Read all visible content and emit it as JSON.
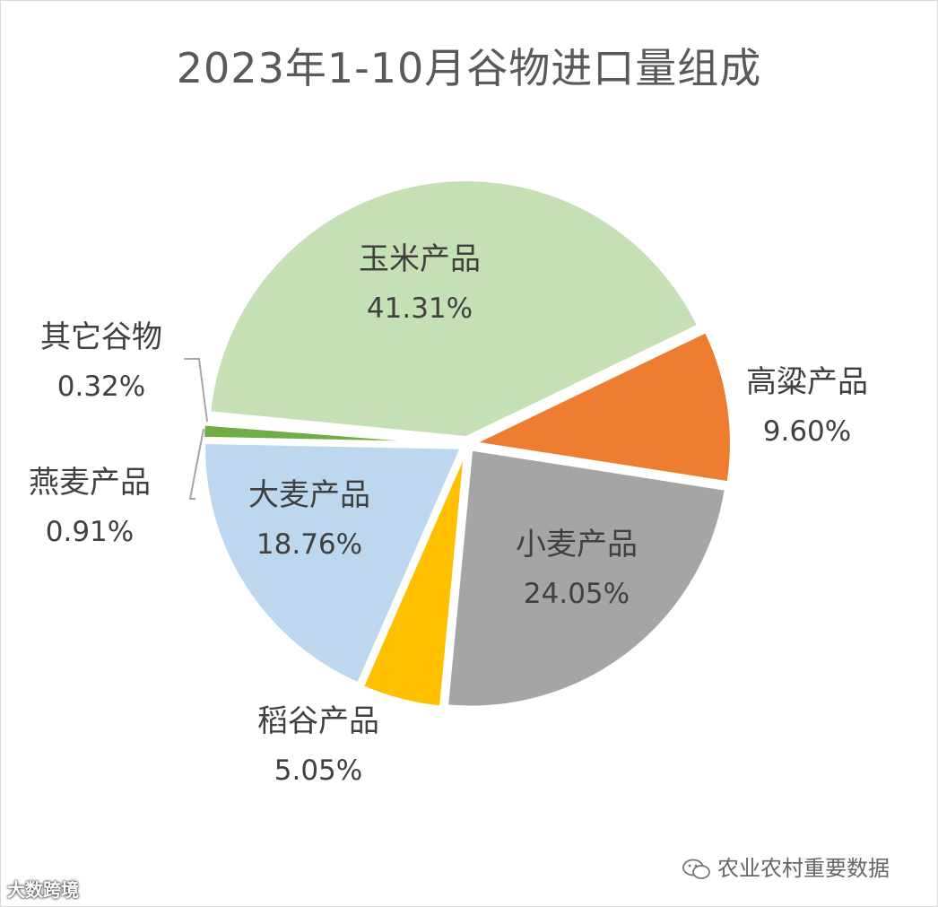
{
  "chart_data": {
    "type": "pie",
    "title": "2023年1-10月谷物进口量组成",
    "slices": [
      {
        "label": "高粱产品",
        "value": 9.6,
        "value_label": "9.60%",
        "color": "#ed7d31"
      },
      {
        "label": "小麦产品",
        "value": 24.05,
        "value_label": "24.05%",
        "color": "#a5a5a5"
      },
      {
        "label": "稻谷产品",
        "value": 5.05,
        "value_label": "5.05%",
        "color": "#ffc000"
      },
      {
        "label": "大麦产品",
        "value": 18.76,
        "value_label": "18.76%",
        "color": "#bdd7ee"
      },
      {
        "label": "燕麦产品",
        "value": 0.91,
        "value_label": "0.91%",
        "color": "#70ad47"
      },
      {
        "label": "其它谷物",
        "value": 0.32,
        "value_label": "0.32%",
        "color": "#ffffff"
      },
      {
        "label": "玉米产品",
        "value": 41.31,
        "value_label": "41.31%",
        "color": "#c5e0b4"
      }
    ],
    "legend": "none",
    "data_labels": "category and percent"
  },
  "watermarks": {
    "right": "农业农村重要数据",
    "left": "大数跨境"
  }
}
